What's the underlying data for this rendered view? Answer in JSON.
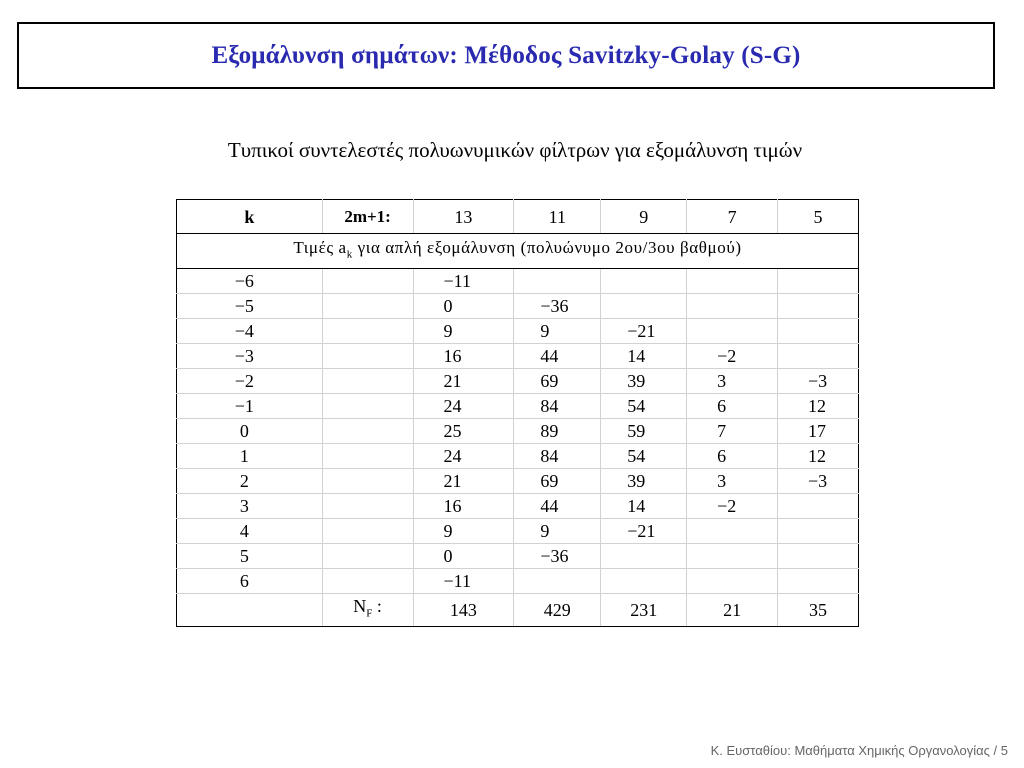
{
  "slide": {
    "title": "Εξομάλυνση σημάτων: Μέθοδος Savitzky-Golay (S-G)",
    "subtitle": "Τυπικοί συντελεστές πολυωνυμικών φίλτρων για εξομάλυνση τιμών",
    "footer": "Κ. Ευσταθίου: Μαθήματα Χημικής Οργανολογίας / 5"
  },
  "table": {
    "header": {
      "k_label": "k",
      "m_label": "2m+1:",
      "columns": [
        "13",
        "11",
        "9",
        "7",
        "5"
      ]
    },
    "caption": {
      "prefix": "Τιμές a",
      "sub": "k",
      "suffix": " για απλή εξομάλυνση (πολυώνυμο 2ου/3ου βαθμού)"
    },
    "rows": [
      {
        "k": "−6",
        "values": [
          "−11",
          "",
          "",
          "",
          ""
        ]
      },
      {
        "k": "−5",
        "values": [
          "0",
          "−36",
          "",
          "",
          ""
        ]
      },
      {
        "k": "−4",
        "values": [
          "9",
          "9",
          "−21",
          "",
          ""
        ]
      },
      {
        "k": "−3",
        "values": [
          "16",
          "44",
          "14",
          "−2",
          ""
        ]
      },
      {
        "k": "−2",
        "values": [
          "21",
          "69",
          "39",
          "3",
          "−3"
        ]
      },
      {
        "k": "−1",
        "values": [
          "24",
          "84",
          "54",
          "6",
          "12"
        ]
      },
      {
        "k": "0",
        "values": [
          "25",
          "89",
          "59",
          "7",
          "17"
        ]
      },
      {
        "k": "1",
        "values": [
          "24",
          "84",
          "54",
          "6",
          "12"
        ]
      },
      {
        "k": "2",
        "values": [
          "21",
          "69",
          "39",
          "3",
          "−3"
        ]
      },
      {
        "k": "3",
        "values": [
          "16",
          "44",
          "14",
          "−2",
          ""
        ]
      },
      {
        "k": "4",
        "values": [
          "9",
          "9",
          "−21",
          "",
          ""
        ]
      },
      {
        "k": "5",
        "values": [
          "0",
          "−36",
          "",
          "",
          ""
        ]
      },
      {
        "k": "6",
        "values": [
          "−11",
          "",
          "",
          "",
          ""
        ]
      }
    ],
    "nf": {
      "label_main": "N",
      "label_sub": "F",
      "label_suffix": " :",
      "values": [
        "143",
        "429",
        "231",
        "21",
        "35"
      ]
    }
  }
}
